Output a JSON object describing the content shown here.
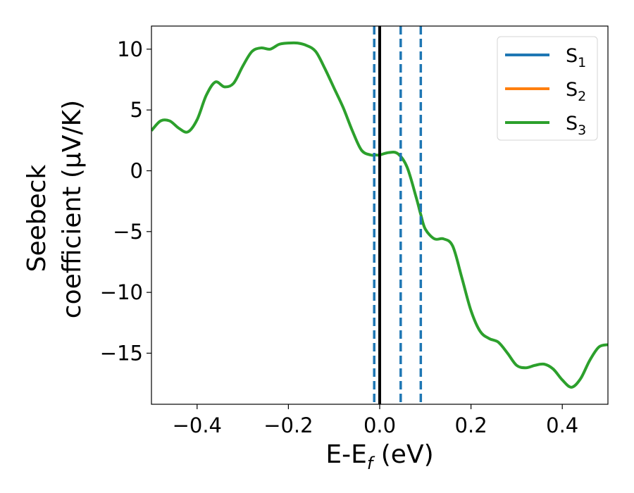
{
  "chart_data": {
    "type": "line",
    "xlabel": {
      "main": "E-E",
      "sub": "f",
      "unit": " (eV)"
    },
    "ylabel": {
      "line1": "Seebeck",
      "line2": "coefficient  (μV/K)"
    },
    "xlim": [
      -0.5,
      0.5
    ],
    "ylim": [
      -19.2,
      11.9
    ],
    "xticks": [
      -0.4,
      -0.2,
      0.0,
      0.2,
      0.4
    ],
    "xtick_labels": [
      "−0.4",
      "−0.2",
      "0.0",
      "0.2",
      "0.4"
    ],
    "yticks": [
      10,
      5,
      0,
      -5,
      -10,
      -15
    ],
    "ytick_labels": [
      "10",
      "5",
      "0",
      "−5",
      "−10",
      "−15"
    ],
    "grid": false,
    "legend_position": "top-right",
    "legend": [
      {
        "base": "S",
        "sub": "1",
        "color": "#1f77b4"
      },
      {
        "base": "S",
        "sub": "2",
        "color": "#ff7f0e"
      },
      {
        "base": "S",
        "sub": "3",
        "color": "#2ca02c"
      }
    ],
    "series": [
      {
        "name": "S3",
        "color": "#2ca02c",
        "x": [
          -0.5,
          -0.48,
          -0.46,
          -0.44,
          -0.42,
          -0.4,
          -0.38,
          -0.36,
          -0.34,
          -0.32,
          -0.3,
          -0.28,
          -0.26,
          -0.24,
          -0.22,
          -0.2,
          -0.18,
          -0.16,
          -0.14,
          -0.12,
          -0.1,
          -0.08,
          -0.06,
          -0.04,
          -0.02,
          -0.01,
          0.0,
          0.02,
          0.04,
          0.06,
          0.08,
          0.09,
          0.1,
          0.12,
          0.14,
          0.16,
          0.18,
          0.2,
          0.22,
          0.24,
          0.26,
          0.28,
          0.3,
          0.32,
          0.34,
          0.36,
          0.38,
          0.4,
          0.42,
          0.44,
          0.46,
          0.48,
          0.5
        ],
        "y": [
          3.3,
          4.1,
          4.1,
          3.5,
          3.2,
          4.2,
          6.2,
          7.3,
          6.9,
          7.2,
          8.6,
          9.8,
          10.1,
          10.0,
          10.4,
          10.5,
          10.5,
          10.3,
          9.8,
          8.4,
          6.8,
          5.2,
          3.3,
          1.7,
          1.3,
          1.3,
          1.3,
          1.5,
          1.4,
          0.3,
          -2.2,
          -3.6,
          -4.8,
          -5.6,
          -5.6,
          -6.2,
          -8.8,
          -11.5,
          -13.2,
          -13.8,
          -14.1,
          -15.0,
          -16.0,
          -16.2,
          -16.0,
          -15.9,
          -16.3,
          -17.2,
          -17.8,
          -17.1,
          -15.6,
          -14.5,
          -14.3
        ]
      }
    ],
    "vlines": [
      {
        "x": -0.012,
        "style": "dashed",
        "color": "#1f77b4"
      },
      {
        "x": 0.0,
        "style": "solid",
        "color": "#000000"
      },
      {
        "x": 0.046,
        "style": "dashed",
        "color": "#1f77b4"
      },
      {
        "x": 0.09,
        "style": "dashed",
        "color": "#1f77b4"
      }
    ]
  }
}
